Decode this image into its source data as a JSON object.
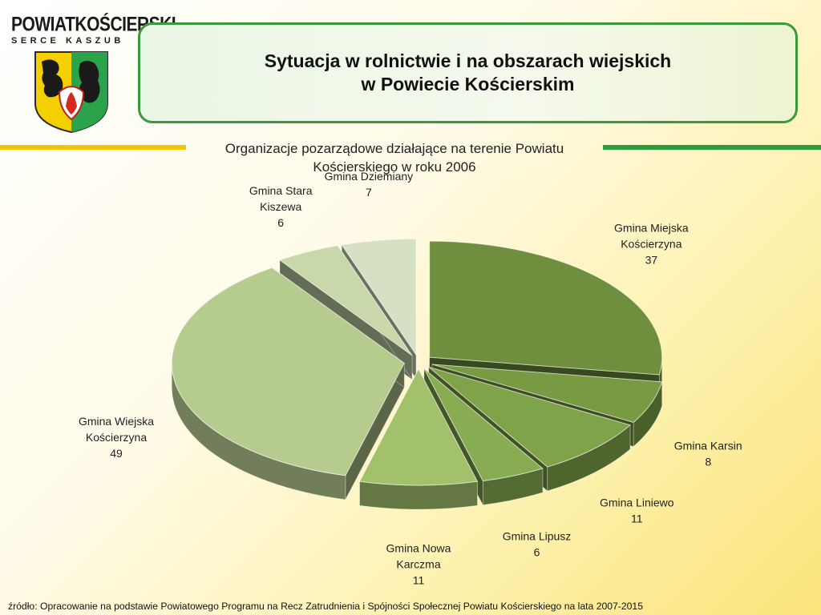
{
  "logo": {
    "main": "POWIATKOŚCIERSKI",
    "sub": "SERCE KASZUB"
  },
  "header": {
    "title_line1": "Sytuacja w rolnictwie i na obszarach wiejskich",
    "title_line2": "w Powiecie Kościerskim"
  },
  "chart_data": {
    "type": "pie",
    "title": "Organizacje pozarządowe działające na terenie Powiatu Kościerskiego w roku 2006",
    "slices": [
      {
        "name": "Gmina Miejska Kościerzyna",
        "value": 37,
        "color": "#6f8f3e"
      },
      {
        "name": "Gmina Karsin",
        "value": 8,
        "color": "#789a42"
      },
      {
        "name": "Gmina Liniewo",
        "value": 11,
        "color": "#7fa348"
      },
      {
        "name": "Gmina Lipusz",
        "value": 6,
        "color": "#88ac52"
      },
      {
        "name": "Gmina Nowa Karczma",
        "value": 11,
        "color": "#a3c06a"
      },
      {
        "name": "Gmina Wiejska Kościerzyna",
        "value": 49,
        "color": "#b6cc8f"
      },
      {
        "name": "Gmina Stara Kiszewa",
        "value": 6,
        "color": "#c8d8aa"
      },
      {
        "name": "Gmina Dziemiany",
        "value": 7,
        "color": "#d6e0c2"
      }
    ]
  },
  "footer": {
    "source": "źródło: Opracowanie na podstawie Powiatowego Programu na Recz Zatrudnienia i Spójności Społecznej Powiatu Kościerskiego na lata 2007-2015"
  }
}
